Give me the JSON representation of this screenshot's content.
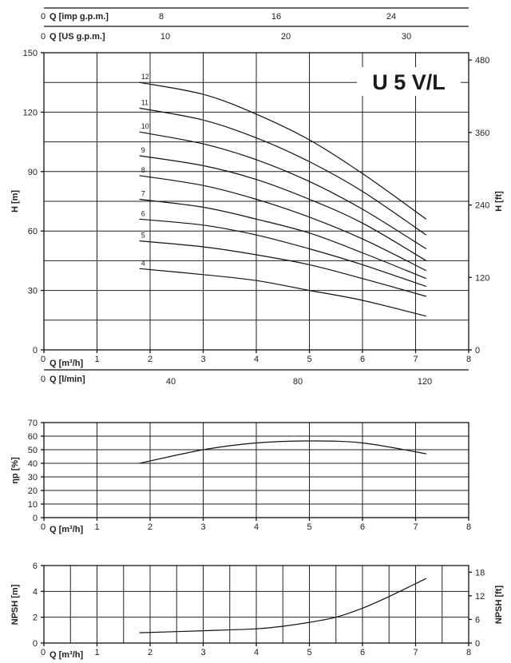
{
  "chart_data": [
    {
      "type": "line",
      "title": "U 5 V/L",
      "xlabel": "Q [m³/h]",
      "ylabel": "H [m]",
      "ylabel_right": "H [ft]",
      "xlim": [
        0,
        8
      ],
      "ylim": [
        0,
        150
      ],
      "x_ticks": [
        0,
        1,
        2,
        3,
        4,
        5,
        6,
        7,
        8
      ],
      "y_ticks": [
        0,
        30,
        60,
        90,
        120,
        150
      ],
      "y_right_ticks": [
        0,
        120,
        240,
        360,
        480
      ],
      "top_axes": [
        {
          "label": "Q [imp g.p.m.]",
          "ticks": [
            0,
            8,
            16,
            24
          ]
        },
        {
          "label": "Q [US g.p.m.]",
          "ticks": [
            0,
            10,
            20,
            30
          ]
        }
      ],
      "bottom_axis_2": {
        "label": "Q [l/min]",
        "ticks": [
          0,
          40,
          80,
          120
        ]
      },
      "grid": true,
      "series": [
        {
          "name": "12",
          "x": [
            1.8,
            3,
            4,
            5,
            6,
            7.2
          ],
          "y": [
            135,
            129,
            119,
            106,
            89,
            66
          ]
        },
        {
          "name": "11",
          "x": [
            1.8,
            3,
            4,
            5,
            6,
            7.2
          ],
          "y": [
            122,
            116,
            107,
            95,
            80,
            58
          ]
        },
        {
          "name": "10",
          "x": [
            1.8,
            3,
            4,
            5,
            6,
            7.2
          ],
          "y": [
            110,
            104,
            96,
            85,
            71,
            51
          ]
        },
        {
          "name": "9",
          "x": [
            1.8,
            3,
            4,
            5,
            6,
            7.2
          ],
          "y": [
            98,
            93,
            86,
            76,
            64,
            45
          ]
        },
        {
          "name": "8",
          "x": [
            1.8,
            3,
            4,
            5,
            6,
            7.2
          ],
          "y": [
            88,
            83,
            76,
            67,
            56,
            40
          ]
        },
        {
          "name": "7",
          "x": [
            1.8,
            3,
            4,
            5,
            6,
            7.2
          ],
          "y": [
            76,
            72,
            66,
            59,
            49,
            36
          ]
        },
        {
          "name": "6",
          "x": [
            1.8,
            3,
            4,
            5,
            6,
            7.2
          ],
          "y": [
            66,
            63,
            58,
            51,
            43,
            32
          ]
        },
        {
          "name": "5",
          "x": [
            1.8,
            3,
            4,
            5,
            6,
            7.2
          ],
          "y": [
            55,
            52,
            48,
            43,
            36,
            27
          ]
        },
        {
          "name": "4",
          "x": [
            1.8,
            3,
            4,
            5,
            6,
            7.2
          ],
          "y": [
            41,
            38,
            35,
            30,
            25,
            17
          ]
        }
      ]
    },
    {
      "type": "line",
      "xlabel": "Q [m³/h]",
      "ylabel": "ηp [%]",
      "xlim": [
        0,
        8
      ],
      "ylim": [
        0,
        70
      ],
      "x_ticks": [
        0,
        1,
        2,
        3,
        4,
        5,
        6,
        7,
        8
      ],
      "y_ticks": [
        0,
        10,
        20,
        30,
        40,
        50,
        60,
        70
      ],
      "grid": true,
      "series": [
        {
          "x": [
            1.8,
            3,
            4,
            5,
            6,
            7.2
          ],
          "y": [
            40,
            50,
            55,
            56.5,
            55,
            47
          ]
        }
      ]
    },
    {
      "type": "line",
      "xlabel": "Q [m³/h]",
      "ylabel": "NPSH [m]",
      "ylabel_right": "NPSH [ft]",
      "xlim": [
        0,
        8
      ],
      "ylim": [
        0,
        6
      ],
      "x_ticks": [
        0,
        1,
        2,
        3,
        4,
        5,
        6,
        7,
        8
      ],
      "y_ticks": [
        0,
        2,
        4,
        6
      ],
      "y_right_ticks": [
        0,
        6,
        12,
        18
      ],
      "grid": true,
      "series": [
        {
          "x": [
            1.8,
            3,
            4,
            4.5,
            5,
            5.5,
            6,
            6.5,
            7.2
          ],
          "y": [
            0.8,
            0.95,
            1.1,
            1.3,
            1.6,
            2.0,
            2.7,
            3.6,
            5.0
          ]
        }
      ]
    }
  ]
}
